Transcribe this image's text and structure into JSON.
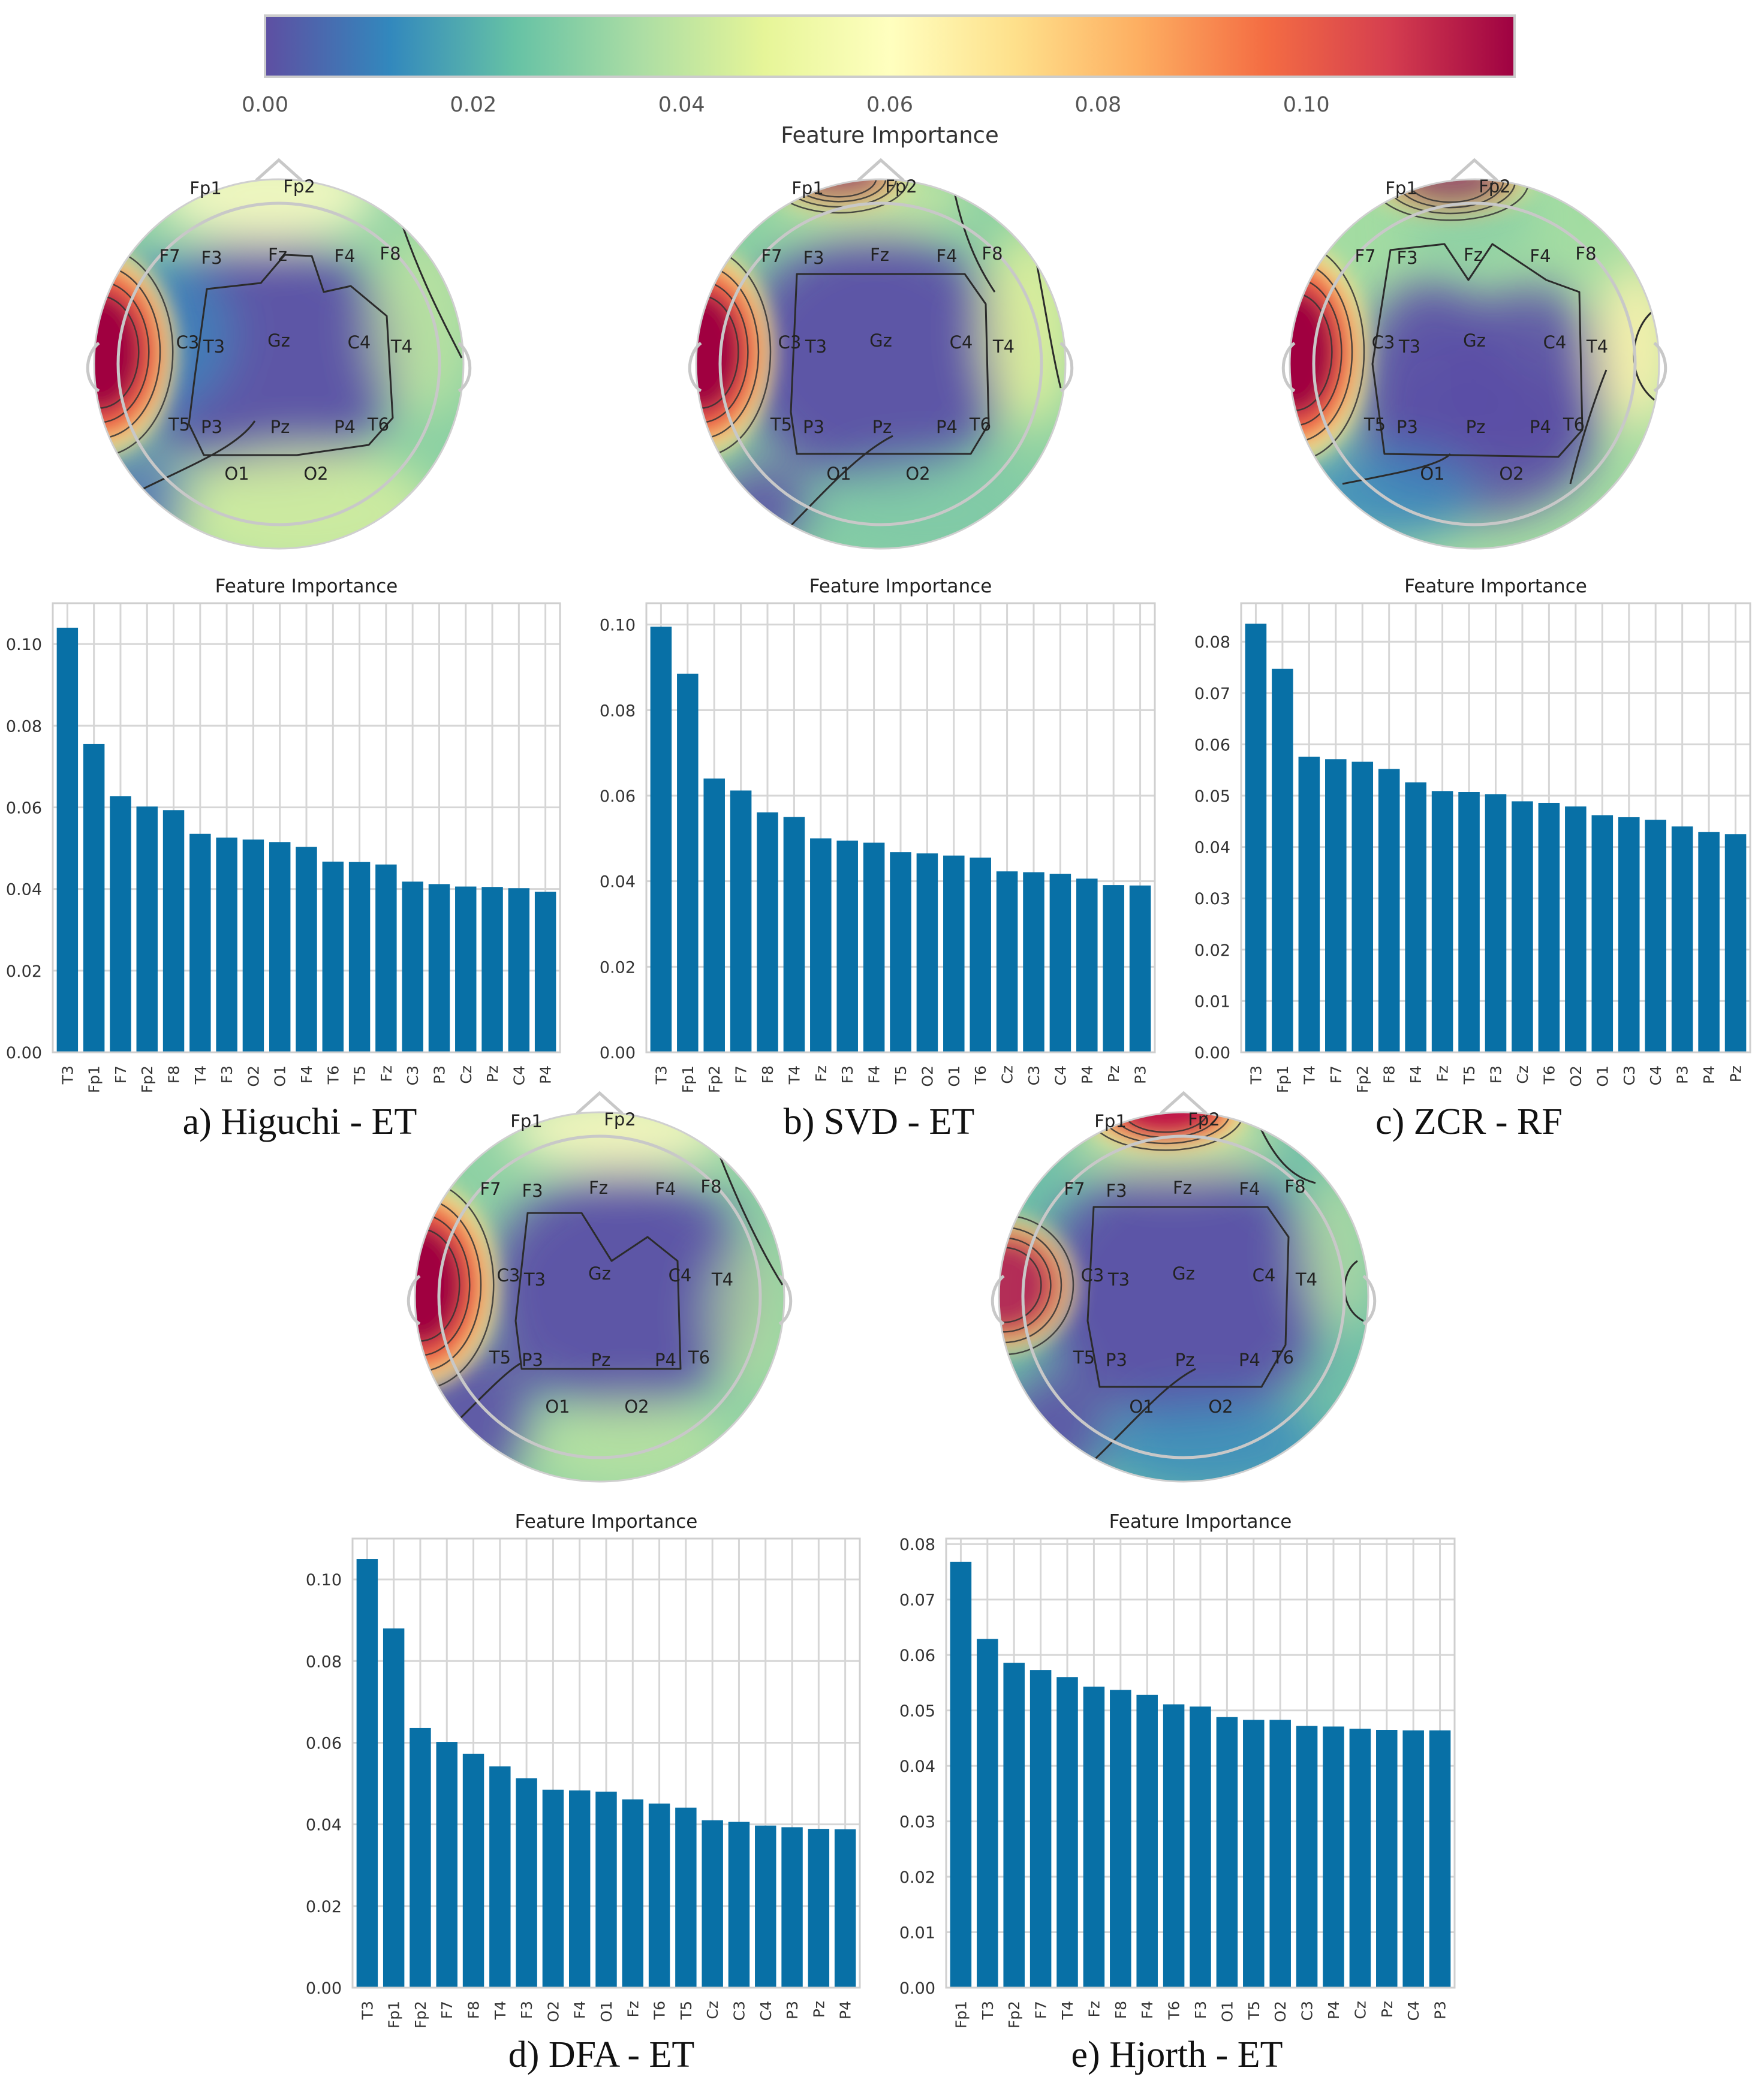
{
  "colorbar": {
    "label": "Feature Importance",
    "ticks": [
      "0.00",
      "0.02",
      "0.04",
      "0.06",
      "0.08",
      "0.10"
    ],
    "range": [
      0,
      0.12
    ],
    "colormap": "Spectral_r"
  },
  "electrodes": [
    "Fp1",
    "Fp2",
    "F7",
    "F3",
    "Fz",
    "F4",
    "F8",
    "T3",
    "C3",
    "Gz",
    "C4",
    "T4",
    "T5",
    "P3",
    "Pz",
    "P4",
    "T6",
    "O1",
    "O2"
  ],
  "chart_data": [
    {
      "type": "bar",
      "caption": "a) Higuchi - ET",
      "title": "Feature Importance",
      "categories": [
        "T3",
        "Fp1",
        "F7",
        "Fp2",
        "F8",
        "T4",
        "F3",
        "O2",
        "O1",
        "F4",
        "T6",
        "T5",
        "Fz",
        "C3",
        "P3",
        "Cz",
        "Pz",
        "C4",
        "P4"
      ],
      "values": [
        0.104,
        0.0755,
        0.0627,
        0.0602,
        0.0593,
        0.0535,
        0.0526,
        0.0521,
        0.0515,
        0.0503,
        0.0467,
        0.0466,
        0.046,
        0.0418,
        0.0412,
        0.0406,
        0.0405,
        0.0402,
        0.0393
      ],
      "yticks": [
        "0.00",
        "0.02",
        "0.04",
        "0.06",
        "0.08",
        "0.10"
      ],
      "ylim": [
        0,
        0.11
      ],
      "xlabel": "",
      "ylabel": ""
    },
    {
      "type": "bar",
      "caption": "b) SVD - ET",
      "title": "Feature Importance",
      "categories": [
        "T3",
        "Fp1",
        "Fp2",
        "F7",
        "F8",
        "T4",
        "Fz",
        "F3",
        "F4",
        "T5",
        "O2",
        "O1",
        "T6",
        "Cz",
        "C3",
        "C4",
        "P4",
        "Pz",
        "P3"
      ],
      "values": [
        0.0995,
        0.0885,
        0.064,
        0.0612,
        0.0561,
        0.055,
        0.05,
        0.0495,
        0.049,
        0.0468,
        0.0465,
        0.046,
        0.0455,
        0.0423,
        0.0421,
        0.0417,
        0.0406,
        0.0391,
        0.039
      ],
      "yticks": [
        "0.00",
        "0.02",
        "0.04",
        "0.06",
        "0.08",
        "0.10"
      ],
      "ylim": [
        0,
        0.105
      ],
      "xlabel": "",
      "ylabel": ""
    },
    {
      "type": "bar",
      "caption": "c) ZCR - RF",
      "title": "Feature Importance",
      "categories": [
        "T3",
        "Fp1",
        "T4",
        "F7",
        "Fp2",
        "F8",
        "F4",
        "Fz",
        "T5",
        "F3",
        "Cz",
        "T6",
        "O2",
        "O1",
        "C3",
        "C4",
        "P3",
        "P4",
        "Pz"
      ],
      "values": [
        0.0835,
        0.0747,
        0.0576,
        0.0571,
        0.0566,
        0.0552,
        0.0526,
        0.0509,
        0.0507,
        0.0503,
        0.0489,
        0.0486,
        0.0479,
        0.0462,
        0.0458,
        0.0453,
        0.044,
        0.0429,
        0.0425
      ],
      "yticks": [
        "0.00",
        "0.01",
        "0.02",
        "0.03",
        "0.04",
        "0.05",
        "0.06",
        "0.07",
        "0.08"
      ],
      "ylim": [
        0,
        0.0875
      ],
      "xlabel": "",
      "ylabel": ""
    },
    {
      "type": "bar",
      "caption": "d) DFA - ET",
      "title": "Feature Importance",
      "categories": [
        "T3",
        "Fp1",
        "Fp2",
        "F7",
        "F8",
        "T4",
        "F3",
        "O2",
        "F4",
        "O1",
        "Fz",
        "T6",
        "T5",
        "Cz",
        "C3",
        "C4",
        "P3",
        "Pz",
        "P4"
      ],
      "values": [
        0.105,
        0.088,
        0.0636,
        0.0602,
        0.0573,
        0.0542,
        0.0513,
        0.0485,
        0.0483,
        0.048,
        0.0461,
        0.0451,
        0.0441,
        0.041,
        0.0406,
        0.0397,
        0.0393,
        0.0389,
        0.0388
      ],
      "yticks": [
        "0.00",
        "0.02",
        "0.04",
        "0.06",
        "0.08",
        "0.10"
      ],
      "ylim": [
        0,
        0.11
      ],
      "xlabel": "",
      "ylabel": ""
    },
    {
      "type": "bar",
      "caption": "e) Hjorth - ET",
      "title": "Feature Importance",
      "categories": [
        "Fp1",
        "T3",
        "Fp2",
        "F7",
        "T4",
        "Fz",
        "F8",
        "F4",
        "T6",
        "F3",
        "O1",
        "T5",
        "O2",
        "C3",
        "P4",
        "Cz",
        "Pz",
        "C4",
        "P3"
      ],
      "values": [
        0.0768,
        0.0629,
        0.0586,
        0.0573,
        0.056,
        0.0543,
        0.0537,
        0.0528,
        0.0511,
        0.0507,
        0.0488,
        0.0483,
        0.0483,
        0.0472,
        0.0471,
        0.0467,
        0.0465,
        0.0464,
        0.0464
      ],
      "yticks": [
        "0.00",
        "0.01",
        "0.02",
        "0.03",
        "0.04",
        "0.05",
        "0.06",
        "0.07",
        "0.08"
      ],
      "ylim": [
        0,
        0.081
      ],
      "xlabel": "",
      "ylabel": ""
    }
  ]
}
